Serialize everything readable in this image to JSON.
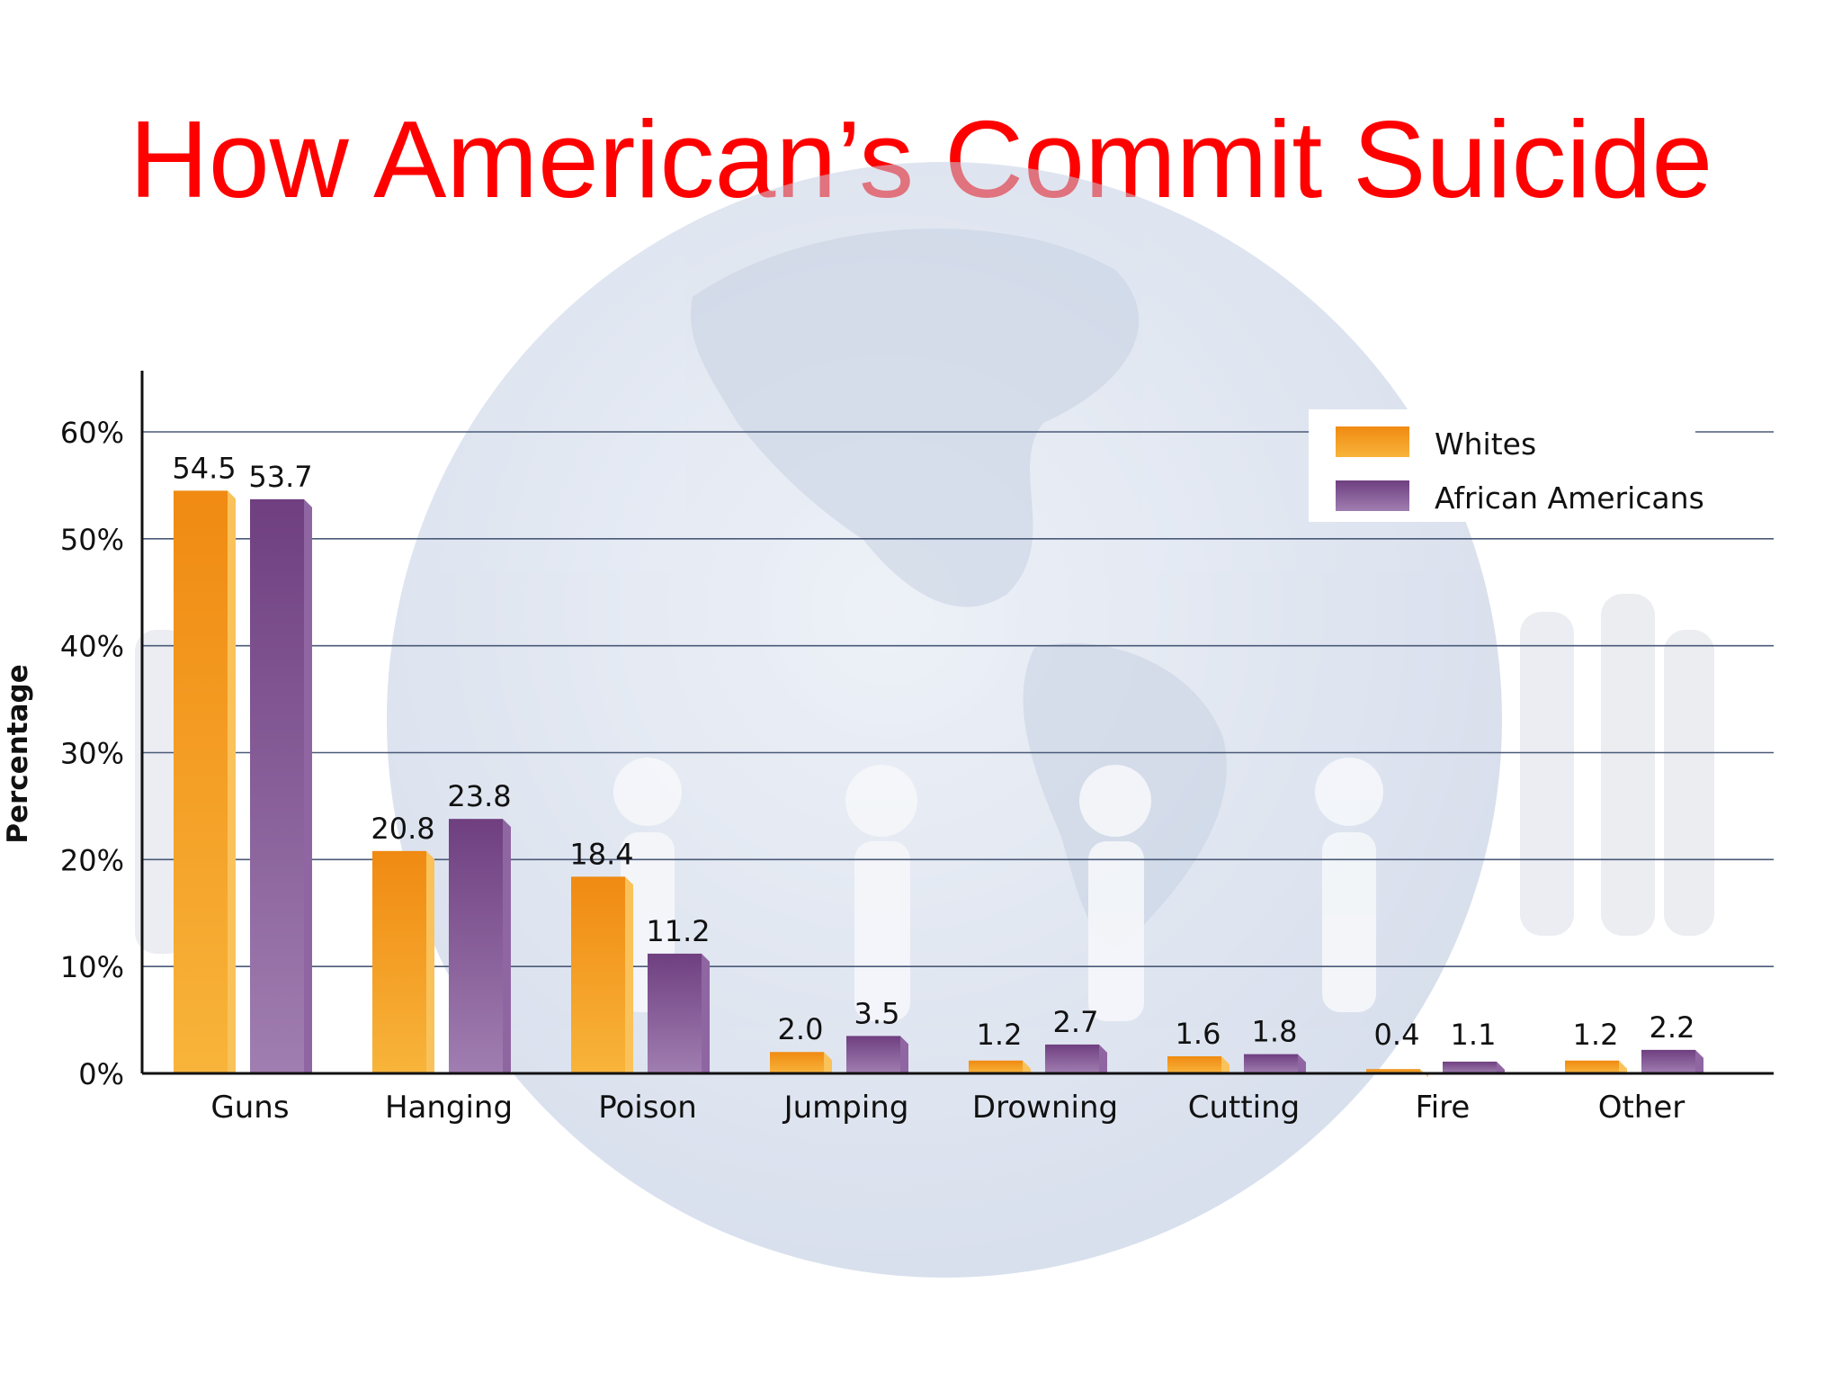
{
  "slide_title": "How American’s Commit Suicide",
  "chart_data": {
    "type": "bar",
    "title": "",
    "xlabel": "",
    "ylabel": "Percentage",
    "ylim": [
      0,
      60
    ],
    "yticks": [
      0,
      10,
      20,
      30,
      40,
      50,
      60
    ],
    "ytick_labels": [
      "0%",
      "10%",
      "20%",
      "30%",
      "40%",
      "50%",
      "60%"
    ],
    "grid": true,
    "legend_position": "top-right",
    "categories": [
      "Guns",
      "Hanging",
      "Poison",
      "Jumping",
      "Drowning",
      "Cutting",
      "Fire",
      "Other"
    ],
    "series": [
      {
        "name": "Whites",
        "values": [
          54.5,
          20.8,
          18.4,
          2.0,
          1.2,
          1.6,
          0.4,
          1.2
        ],
        "labels": [
          "54.5",
          "20.8",
          "18.4",
          "2.0",
          "1.2",
          "1.6",
          "0.4",
          "1.2"
        ],
        "color": "#f39a1c"
      },
      {
        "name": "African Americans",
        "values": [
          53.7,
          23.8,
          11.2,
          3.5,
          2.7,
          1.8,
          1.1,
          2.2
        ],
        "labels": [
          "53.7",
          "23.8",
          "11.2",
          "3.5",
          "2.7",
          "1.8",
          "1.1",
          "2.2"
        ],
        "color": "#7d4d8f"
      }
    ]
  }
}
